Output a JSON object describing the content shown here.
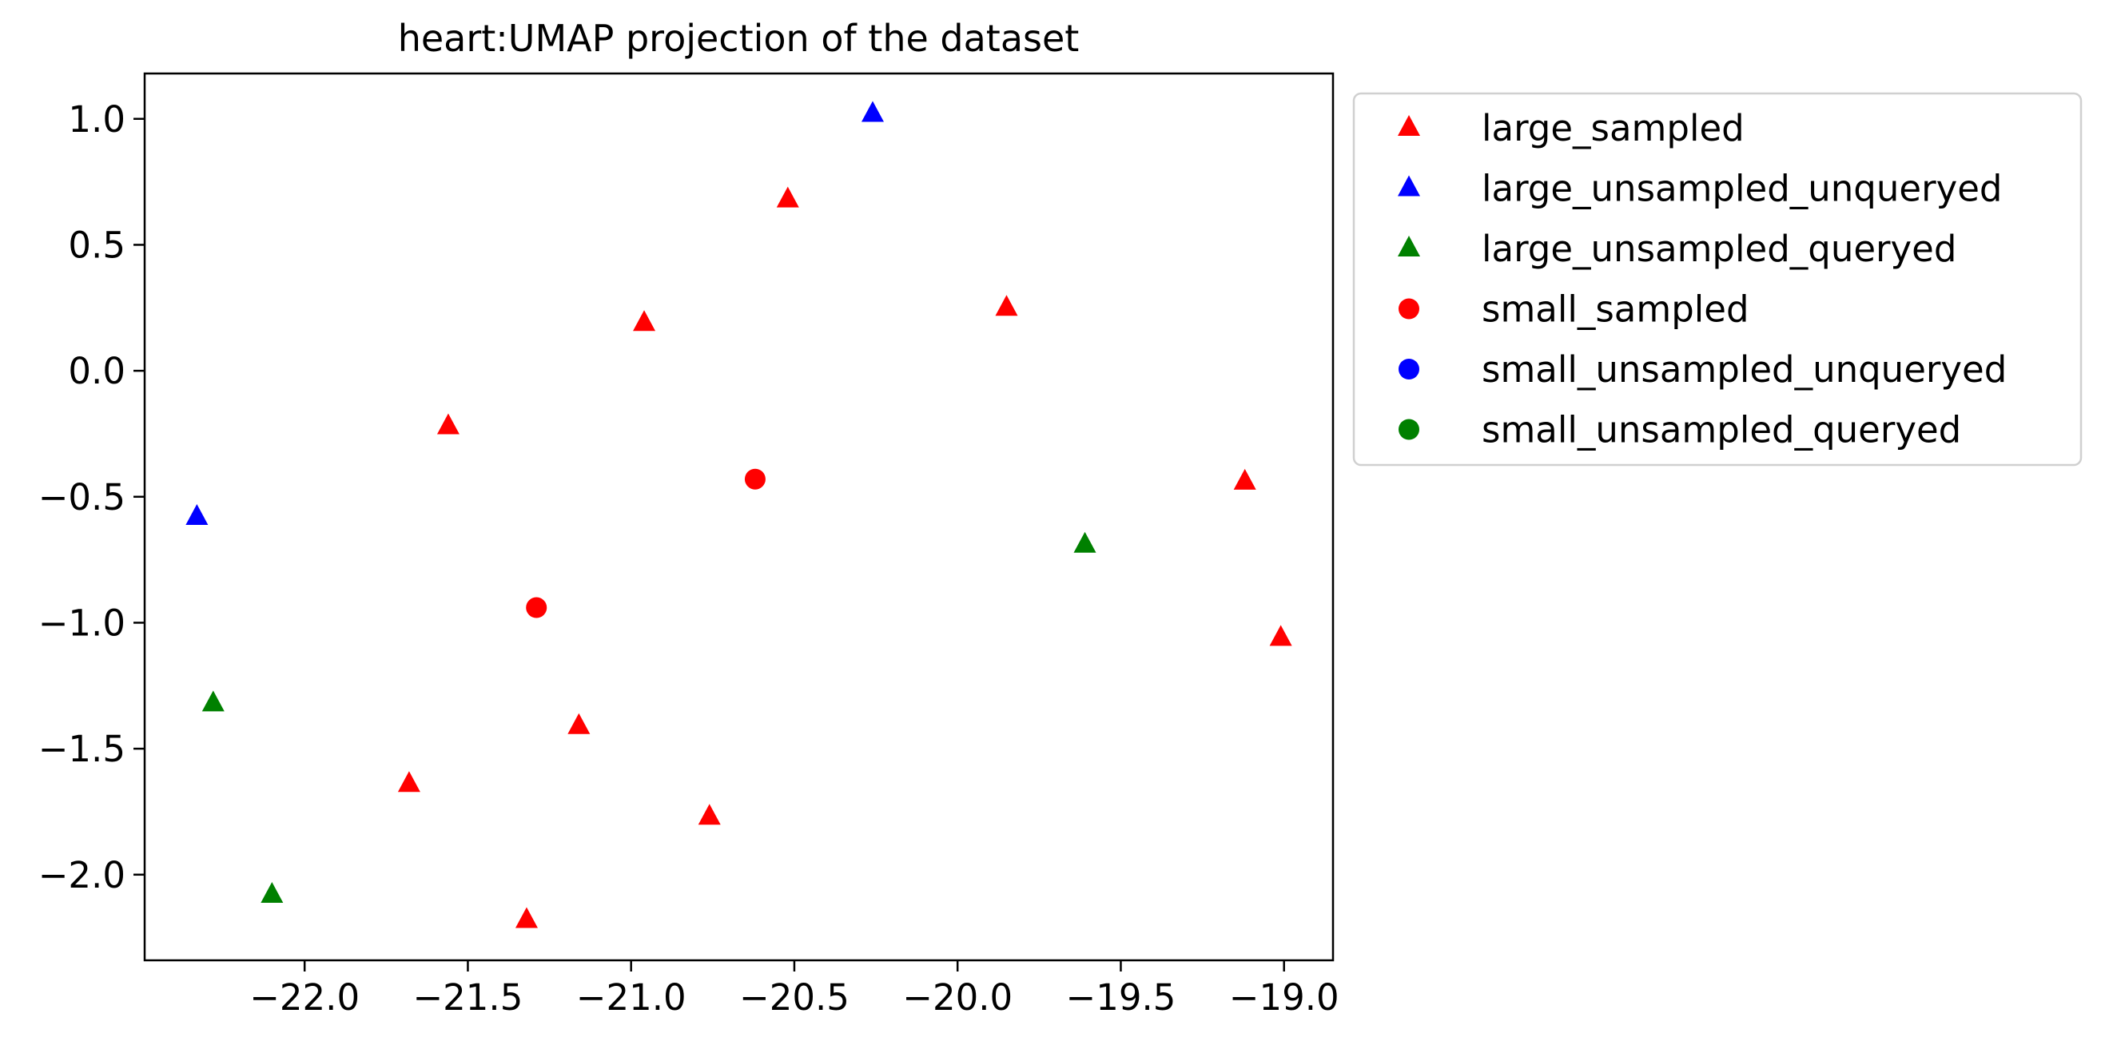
{
  "chart_data": {
    "type": "scatter",
    "title": "heart:UMAP projection of the dataset",
    "xlabel": "",
    "ylabel": "",
    "xlim": [
      -22.49,
      -18.85
    ],
    "ylim": [
      -2.34,
      1.18
    ],
    "x_ticks": [
      -22.0,
      -21.5,
      -21.0,
      -20.5,
      -20.0,
      -19.5,
      -19.0
    ],
    "y_ticks": [
      1.0,
      0.5,
      0.0,
      -0.5,
      -1.0,
      -1.5,
      -2.0
    ],
    "x_tick_labels": [
      "−22.0",
      "−21.5",
      "−21.0",
      "−20.5",
      "−20.0",
      "−19.5",
      "−19.0"
    ],
    "y_tick_labels": [
      "1.0",
      "0.5",
      "0.0",
      "−0.5",
      "−1.0",
      "−1.5",
      "−2.0"
    ],
    "grid": false,
    "legend_position": "outside-right-top",
    "series": [
      {
        "name": "large_sampled",
        "marker": "triangle",
        "color": "#ff0000",
        "points": [
          {
            "x": -20.52,
            "y": 0.68
          },
          {
            "x": -20.96,
            "y": 0.19
          },
          {
            "x": -19.85,
            "y": 0.25
          },
          {
            "x": -21.56,
            "y": -0.22
          },
          {
            "x": -19.12,
            "y": -0.44
          },
          {
            "x": -19.01,
            "y": -1.06
          },
          {
            "x": -21.16,
            "y": -1.41
          },
          {
            "x": -21.68,
            "y": -1.64
          },
          {
            "x": -20.76,
            "y": -1.77
          },
          {
            "x": -21.32,
            "y": -2.18
          }
        ]
      },
      {
        "name": "large_unsampled_unqueryed",
        "marker": "triangle",
        "color": "#0000ff",
        "points": [
          {
            "x": -20.26,
            "y": 1.02
          },
          {
            "x": -22.33,
            "y": -0.58
          }
        ]
      },
      {
        "name": "large_unsampled_queryed",
        "marker": "triangle",
        "color": "#008000",
        "points": [
          {
            "x": -19.61,
            "y": -0.69
          },
          {
            "x": -22.28,
            "y": -1.32
          },
          {
            "x": -22.1,
            "y": -2.08
          }
        ]
      },
      {
        "name": "small_sampled",
        "marker": "circle",
        "color": "#ff0000",
        "points": [
          {
            "x": -20.62,
            "y": -0.43
          },
          {
            "x": -21.29,
            "y": -0.94
          }
        ]
      },
      {
        "name": "small_unsampled_unqueryed",
        "marker": "circle",
        "color": "#0000ff",
        "points": []
      },
      {
        "name": "small_unsampled_queryed",
        "marker": "circle",
        "color": "#008000",
        "points": []
      }
    ]
  }
}
